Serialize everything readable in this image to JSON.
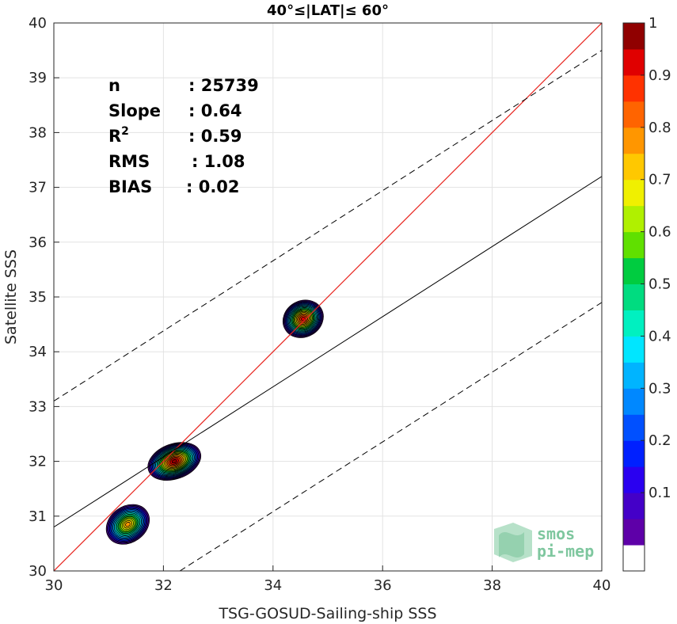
{
  "chart_data": {
    "type": "density-contour-scatter",
    "title": "40°≤|LAT|≤ 60°",
    "xlabel": "TSG-GOSUD-Sailing-ship SSS",
    "ylabel": "Satellite SSS",
    "xlim": [
      30,
      40
    ],
    "ylim": [
      30,
      40
    ],
    "xticks": [
      30,
      32,
      34,
      36,
      38,
      40
    ],
    "yticks": [
      30,
      31,
      32,
      33,
      34,
      35,
      36,
      37,
      38,
      39,
      40
    ],
    "grid": true,
    "stats": [
      {
        "label": "n",
        "value": ": 25739"
      },
      {
        "label": "Slope",
        "value": ": 0.64"
      },
      {
        "label": "R",
        "sup": "2",
        "value": ": 0.59"
      },
      {
        "label": "RMS",
        "value": ": 1.08"
      },
      {
        "label": "BIAS",
        "value": ": 0.02"
      }
    ],
    "lines": {
      "identity": {
        "slope": 1,
        "intercept": 0,
        "color": "#e8231d"
      },
      "fit": {
        "slope": 0.64,
        "intercept_at_x30": 30.8,
        "value_at_x40": 37.2,
        "color": "#000000"
      },
      "upper_dashed": {
        "y_at_x30": 33.1,
        "y_at_x40": 39.5,
        "color": "#000000"
      },
      "lower_dashed": {
        "y_at_x32_3": 30.0,
        "y_at_x40": 34.9,
        "color": "#000000"
      }
    },
    "density_clusters": [
      {
        "name": "",
        "center": [
          31.35,
          30.85
        ],
        "spread": [
          0.42,
          0.33
        ],
        "peak": 0.8
      },
      {
        "name": "",
        "center": [
          32.2,
          32.0
        ],
        "spread": [
          0.5,
          0.32
        ],
        "peak": 1.0
      },
      {
        "name": "",
        "center": [
          34.55,
          34.6
        ],
        "spread": [
          0.38,
          0.33
        ],
        "peak": 0.95
      }
    ],
    "colorbar": {
      "ticks": [
        "0.1",
        "0.2",
        "0.3",
        "0.4",
        "0.5",
        "0.6",
        "0.7",
        "0.8",
        "0.9",
        "1"
      ],
      "levels": 20,
      "colors": [
        "#ffffff",
        "#5e00a8",
        "#4400c8",
        "#2a00f0",
        "#0020ff",
        "#0050ff",
        "#0088ff",
        "#00b4ff",
        "#00e6ff",
        "#00f0c0",
        "#00dc80",
        "#00cc40",
        "#60e000",
        "#b0f000",
        "#f0f000",
        "#ffc800",
        "#ff9600",
        "#ff6400",
        "#ff3200",
        "#e00000",
        "#900000"
      ]
    },
    "logo": {
      "line1": "smos",
      "line2": "pi-mep"
    }
  }
}
